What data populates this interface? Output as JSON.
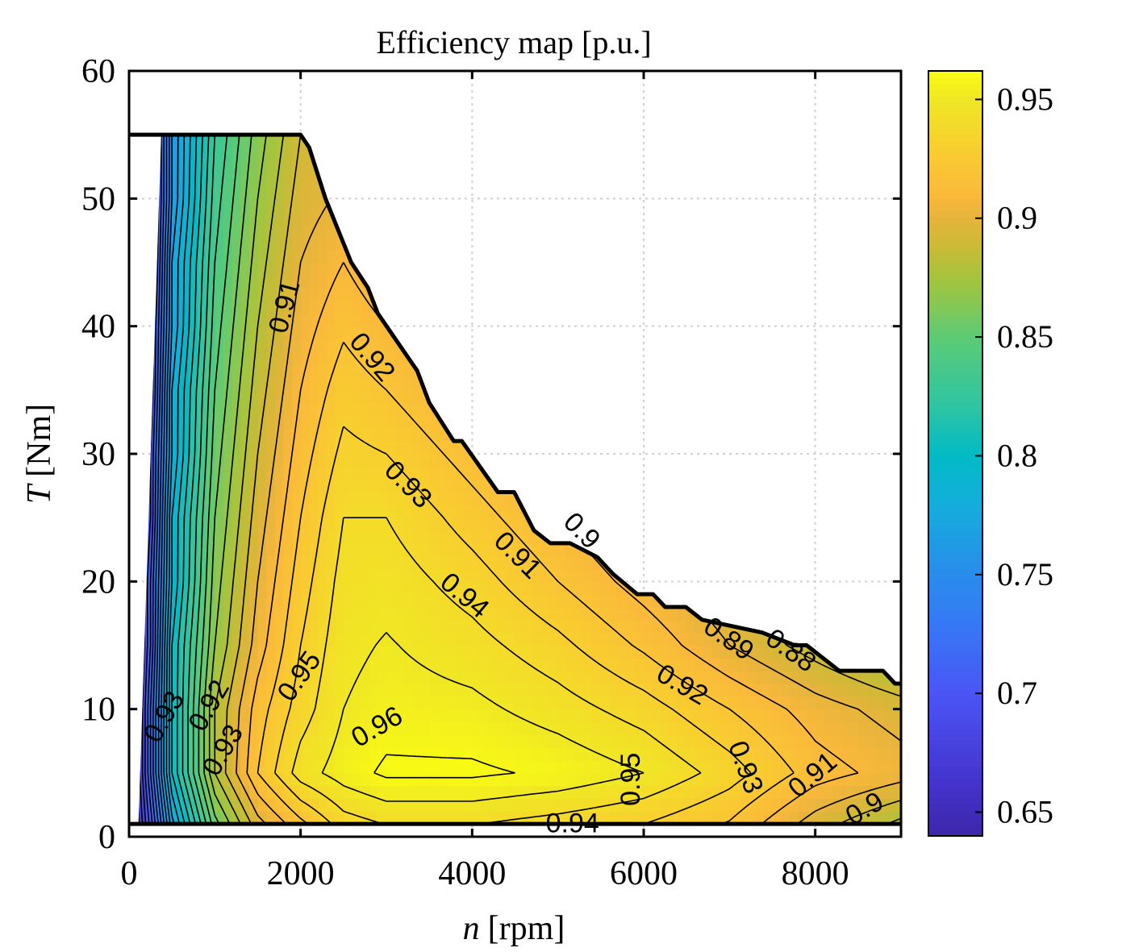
{
  "chart_data": {
    "type": "heatmap",
    "subtype": "filled-contour",
    "title": "Efficiency map [p.u.]",
    "xlabel_var": "n",
    "xlabel_unit": "[rpm]",
    "ylabel_var": "T",
    "ylabel_unit": "[Nm]",
    "xlim": [
      0,
      9000
    ],
    "ylim": [
      0,
      60
    ],
    "xticks": [
      0,
      2000,
      4000,
      6000,
      8000
    ],
    "xtick_labels": [
      "0",
      "2000",
      "4000",
      "6000",
      "8000"
    ],
    "yticks": [
      0,
      10,
      20,
      30,
      40,
      50,
      60
    ],
    "ytick_labels": [
      "0",
      "10",
      "20",
      "30",
      "40",
      "50",
      "60"
    ],
    "grid": true,
    "colorbar": {
      "range": [
        0.64,
        0.962
      ],
      "ticks": [
        0.65,
        0.7,
        0.75,
        0.8,
        0.85,
        0.9,
        0.95
      ],
      "tick_labels": [
        "0.65",
        "0.7",
        "0.75",
        "0.8",
        "0.85",
        "0.9",
        "0.95"
      ],
      "colormap": [
        [
          0.64,
          "#3d26a8"
        ],
        [
          0.66,
          "#4431c9"
        ],
        [
          0.7,
          "#4a55f4"
        ],
        [
          0.73,
          "#3579f5"
        ],
        [
          0.75,
          "#2a8cec"
        ],
        [
          0.78,
          "#14aedb"
        ],
        [
          0.8,
          "#02bac6"
        ],
        [
          0.82,
          "#2cc4a6"
        ],
        [
          0.85,
          "#5ccb75"
        ],
        [
          0.875,
          "#a6c43d"
        ],
        [
          0.89,
          "#cfb935"
        ],
        [
          0.9,
          "#e6b43c"
        ],
        [
          0.91,
          "#fbb93b"
        ],
        [
          0.93,
          "#f8cf2f"
        ],
        [
          0.95,
          "#f0e724"
        ],
        [
          0.962,
          "#f9fb14"
        ]
      ]
    },
    "efficiency_grid": {
      "n": [
        0,
        250,
        500,
        1000,
        1500,
        2000,
        2500,
        3000,
        4000,
        5000,
        6000,
        7000,
        8000,
        9000
      ],
      "T": [
        0,
        5,
        10,
        15,
        20,
        25,
        30,
        35,
        40,
        45,
        50,
        55,
        60
      ],
      "eta": [
        [
          0.64,
          0.7,
          0.77,
          0.85,
          0.89,
          0.91,
          0.93,
          0.935,
          0.935,
          0.93,
          0.925,
          0.915,
          0.89,
          0.87
        ],
        [
          0.64,
          0.72,
          0.8,
          0.88,
          0.92,
          0.945,
          0.955,
          0.962,
          0.962,
          0.958,
          0.95,
          0.935,
          0.915,
          0.905
        ],
        [
          0.64,
          0.72,
          0.8,
          0.88,
          0.915,
          0.935,
          0.95,
          0.955,
          0.953,
          0.945,
          0.935,
          0.92,
          0.905,
          0.895
        ],
        [
          0.64,
          0.71,
          0.8,
          0.87,
          0.905,
          0.93,
          0.947,
          0.951,
          0.944,
          0.933,
          0.918,
          0.9,
          0.885,
          0.87
        ],
        [
          0.64,
          0.71,
          0.79,
          0.865,
          0.9,
          0.925,
          0.944,
          0.946,
          0.935,
          0.92,
          0.905,
          0.89,
          0.875,
          0.86
        ],
        [
          0.64,
          0.7,
          0.79,
          0.86,
          0.895,
          0.92,
          0.94,
          0.94,
          0.925,
          0.91,
          0.895,
          0.88,
          0.87,
          0.86
        ],
        [
          0.64,
          0.7,
          0.78,
          0.855,
          0.89,
          0.915,
          0.933,
          0.93,
          0.915,
          0.9,
          0.89,
          0.88,
          0.87,
          0.86
        ],
        [
          0.64,
          0.69,
          0.78,
          0.85,
          0.885,
          0.91,
          0.926,
          0.92,
          0.905,
          0.89,
          0.88,
          0.87,
          0.86,
          0.85
        ],
        [
          0.64,
          0.69,
          0.77,
          0.845,
          0.88,
          0.905,
          0.918,
          0.91,
          0.895,
          0.885,
          0.875,
          0.865,
          0.855,
          0.845
        ],
        [
          0.64,
          0.68,
          0.77,
          0.84,
          0.875,
          0.9,
          0.91,
          0.9,
          0.89,
          0.88,
          0.87,
          0.86,
          0.85,
          0.84
        ],
        [
          0.64,
          0.68,
          0.76,
          0.835,
          0.87,
          0.895,
          0.902,
          0.89,
          0.88,
          0.87,
          0.86,
          0.85,
          0.84,
          0.83
        ],
        [
          0.64,
          0.68,
          0.76,
          0.83,
          0.865,
          0.89,
          0.895,
          0.885,
          0.875,
          0.865,
          0.855,
          0.845,
          0.835,
          0.825
        ],
        [
          0.64,
          0.68,
          0.76,
          0.83,
          0.865,
          0.89,
          0.895,
          0.885,
          0.875,
          0.865,
          0.855,
          0.845,
          0.835,
          0.825
        ]
      ]
    },
    "contour_levels": [
      0.66,
      0.67,
      0.68,
      0.69,
      0.7,
      0.71,
      0.72,
      0.73,
      0.74,
      0.75,
      0.76,
      0.77,
      0.78,
      0.79,
      0.8,
      0.81,
      0.82,
      0.83,
      0.84,
      0.85,
      0.86,
      0.87,
      0.88,
      0.89,
      0.9,
      0.91,
      0.92,
      0.93,
      0.94,
      0.95,
      0.96
    ],
    "max_torque_envelope": [
      [
        0,
        55
      ],
      [
        2000,
        55
      ],
      [
        2100,
        54
      ],
      [
        2290,
        50
      ],
      [
        2590,
        45
      ],
      [
        2785,
        43
      ],
      [
        2900,
        41
      ],
      [
        3360,
        36.5
      ],
      [
        3500,
        34
      ],
      [
        3785,
        31
      ],
      [
        3880,
        31
      ],
      [
        4300,
        27
      ],
      [
        4490,
        27
      ],
      [
        4720,
        24
      ],
      [
        4910,
        23
      ],
      [
        5140,
        23
      ],
      [
        5460,
        21.9
      ],
      [
        5640,
        20.6
      ],
      [
        5925,
        19
      ],
      [
        6110,
        19
      ],
      [
        6250,
        18
      ],
      [
        6490,
        18
      ],
      [
        6680,
        17
      ],
      [
        7380,
        16
      ],
      [
        7760,
        15
      ],
      [
        7900,
        15
      ],
      [
        8280,
        13
      ],
      [
        8790,
        13
      ],
      [
        8930,
        12
      ],
      [
        9000,
        12
      ]
    ],
    "min_torque": 1,
    "left_boundary": [
      [
        375,
        55
      ],
      [
        110,
        1
      ]
    ],
    "contour_labels": [
      {
        "text": "0.91",
        "n": 1830,
        "T": 41.5
      },
      {
        "text": "0.92",
        "n": 2820,
        "T": 37.5
      },
      {
        "text": "0.93",
        "n": 3240,
        "T": 27.5
      },
      {
        "text": "0.94",
        "n": 3900,
        "T": 18.8
      },
      {
        "text": "0.95",
        "n": 2000,
        "T": 12.5
      },
      {
        "text": "0.96",
        "n": 2900,
        "T": 8.5
      },
      {
        "text": "0.95",
        "n": 5870,
        "T": 4.5
      },
      {
        "text": "0.94",
        "n": 5170,
        "T": 0.9
      },
      {
        "text": "0.92",
        "n": 6440,
        "T": 11.8
      },
      {
        "text": "0.93",
        "n": 7170,
        "T": 5.4
      },
      {
        "text": "0.91",
        "n": 4800,
        "T": 22.6
      },
      {
        "text": "0.9",
        "n": 5030,
        "T": 22.3
      },
      {
        "text": "0.89",
        "n": 6980,
        "T": 15.4
      },
      {
        "text": "0.88",
        "n": 7470,
        "T": 14.8
      },
      {
        "text": "0.91",
        "n": 8170,
        "T": 3.8
      },
      {
        "text": "0.9",
        "n": 8350,
        "T": 2.4
      },
      {
        "text": "0.92",
        "n": 750,
        "T": 10.4
      },
      {
        "text": "0.93",
        "n": 620,
        "T": 8.2
      },
      {
        "text": "0.93",
        "n": 950,
        "T": 7.6
      }
    ]
  }
}
